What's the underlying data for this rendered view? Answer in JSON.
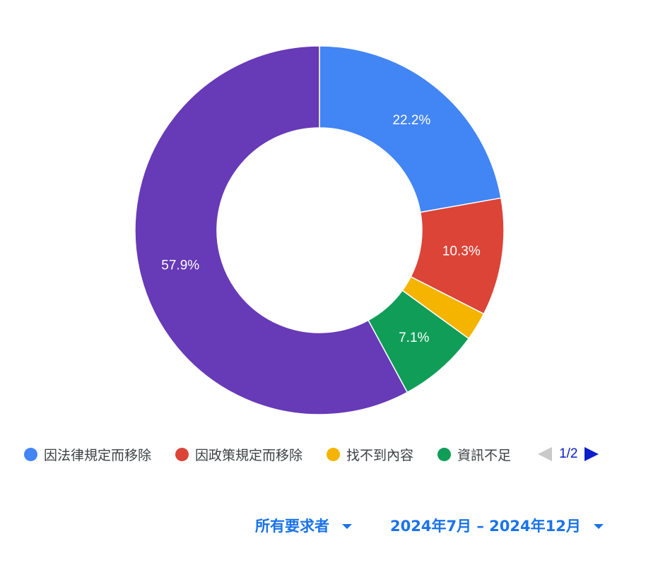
{
  "chart_data": {
    "type": "pie",
    "donut": true,
    "slices": [
      {
        "label": "因法律規定而移除",
        "value": 22.2,
        "color": "#4285f4",
        "shown_label": "22.2%"
      },
      {
        "label": "因政策規定而移除",
        "value": 10.3,
        "color": "#db4437",
        "shown_label": "10.3%"
      },
      {
        "label": "找不到內容",
        "value": 2.5,
        "color": "#f4b400",
        "shown_label": ""
      },
      {
        "label": "資訊不足",
        "value": 7.1,
        "color": "#0f9d58",
        "shown_label": "7.1%"
      },
      {
        "label": "",
        "value": 57.9,
        "color": "#673ab7",
        "shown_label": "57.9%"
      }
    ]
  },
  "legend": {
    "items": [
      {
        "label": "因法律規定而移除",
        "color": "#4285f4"
      },
      {
        "label": "因政策規定而移除",
        "color": "#db4437"
      },
      {
        "label": "找不到內容",
        "color": "#f4b400"
      },
      {
        "label": "資訊不足",
        "color": "#0f9d58"
      }
    ],
    "page": "1/2"
  },
  "filters": {
    "requester": "所有要求者",
    "date_range": "2024年7月 – 2024年12月"
  }
}
